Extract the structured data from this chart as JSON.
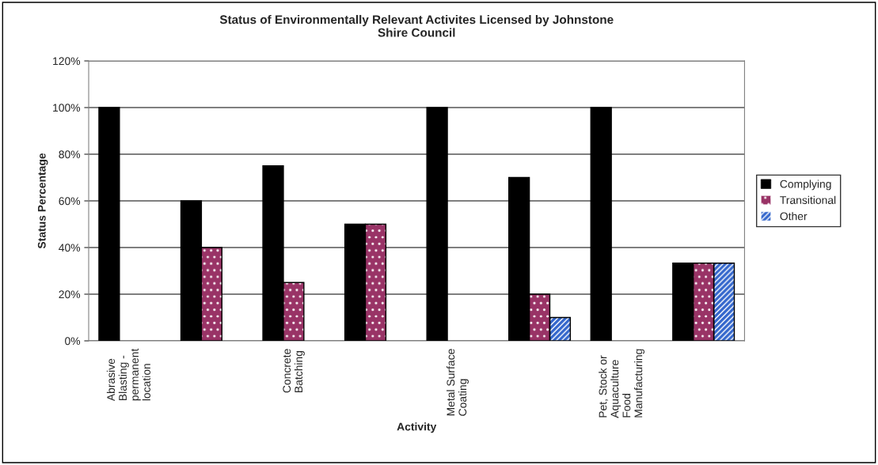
{
  "chart_data": {
    "type": "bar",
    "title": "Status of Environmentally Relevant Activites Licensed by Johnstone\nShire Council",
    "xlabel": "Activity",
    "ylabel": "Status Percentage",
    "categories": [
      "Abrasive\nBlasting -\npermanent\nlocation",
      null,
      "Concrete\nBatching",
      null,
      "Metal Surface\nCoating",
      null,
      "Pet, Stock or\nAquaculture\nFood\nManufacturing",
      null
    ],
    "series": [
      {
        "name": "Complying",
        "color": "#000000",
        "values": [
          100,
          60,
          75,
          50,
          100,
          70,
          100,
          33.3
        ]
      },
      {
        "name": "Transitional",
        "color": "#993366",
        "values": [
          null,
          40,
          25,
          50,
          null,
          20,
          null,
          33.3
        ]
      },
      {
        "name": "Other",
        "color": "#3366cc",
        "values": [
          null,
          null,
          null,
          null,
          null,
          10,
          null,
          33.3
        ]
      }
    ],
    "ylim": [
      0,
      120
    ],
    "yticks": [
      {
        "value": 0,
        "label": "0%"
      },
      {
        "value": 20,
        "label": "20%"
      },
      {
        "value": 40,
        "label": "40%"
      },
      {
        "value": 60,
        "label": "60%"
      },
      {
        "value": 80,
        "label": "80%"
      },
      {
        "value": 100,
        "label": "100%"
      },
      {
        "value": 120,
        "label": "120%"
      }
    ],
    "grid": "y",
    "legend": "right"
  }
}
